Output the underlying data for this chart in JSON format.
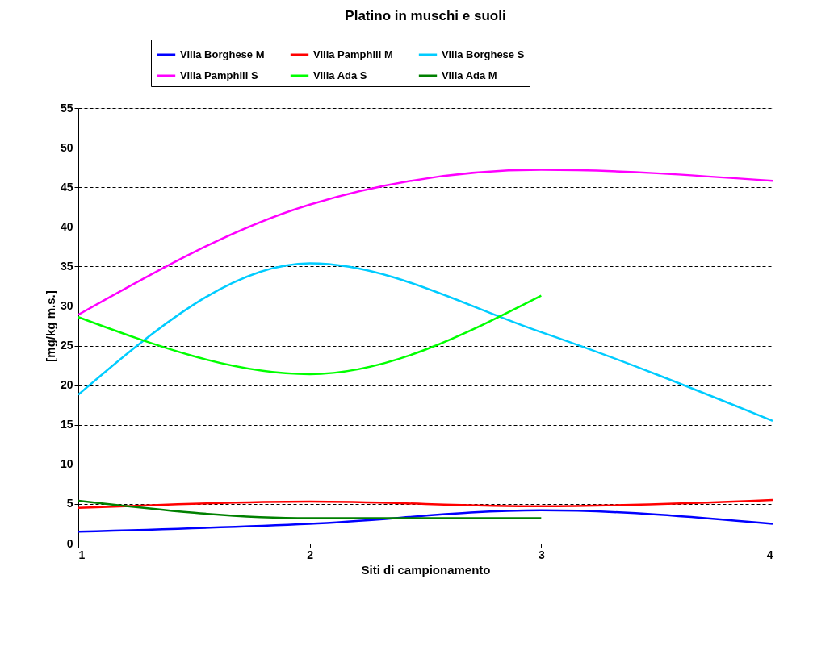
{
  "chart_data": {
    "type": "line",
    "title": "Platino in muschi e suoli",
    "xlabel": "Siti di campionamento",
    "ylabel": "[mg/kg m.s.]",
    "x": [
      1,
      2,
      3,
      4
    ],
    "xlim": [
      1,
      4
    ],
    "xticks": [
      1,
      2,
      3,
      4
    ],
    "ylim": [
      0,
      55
    ],
    "yticks": [
      0,
      5,
      10,
      15,
      20,
      25,
      30,
      35,
      40,
      45,
      50,
      55
    ],
    "grid": "y",
    "legend": "top",
    "marker": "none",
    "line_style": "solid",
    "series": [
      {
        "name": "Villa Borghese M",
        "color": "#0000ff",
        "values": [
          1.5,
          2.5,
          4.2,
          2.5
        ]
      },
      {
        "name": "Villa Pamphili M",
        "color": "#ff0000",
        "values": [
          4.5,
          5.3,
          4.7,
          5.5
        ]
      },
      {
        "name": "Villa Borghese S",
        "color": "#00ccff",
        "values": [
          18.8,
          35.4,
          26.7,
          15.5
        ]
      },
      {
        "name": "Villa Pamphili S",
        "color": "#ff00ff",
        "values": [
          28.9,
          42.8,
          47.2,
          45.8
        ]
      },
      {
        "name": "Villa Ada S",
        "color": "#00ff00",
        "values": [
          28.6,
          21.4,
          31.3,
          null
        ]
      },
      {
        "name": "Villa Ada M",
        "color": "#008000",
        "values": [
          5.4,
          3.2,
          3.2,
          null
        ]
      }
    ]
  }
}
